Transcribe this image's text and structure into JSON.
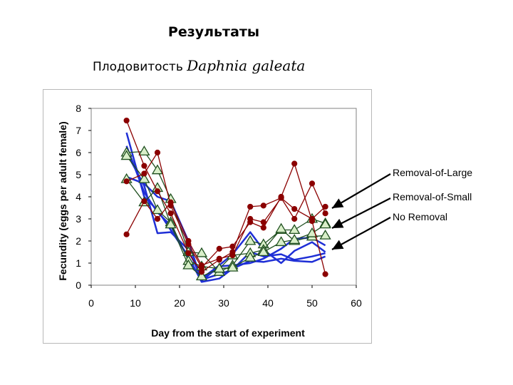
{
  "slide": {
    "title": "Результаты",
    "subtitle_prefix": "Плодовитость ",
    "subtitle_species": "Daphnia galeata"
  },
  "annotations": [
    "Removal-of-Large",
    "Removal-of-Small",
    "No Removal"
  ],
  "colors": {
    "removal_of_large": "#8b0000",
    "removal_of_small": "#1f4f1f",
    "no_removal": "#1f2fd6",
    "arrow": "#000000"
  },
  "chart_data": {
    "type": "line",
    "title": "",
    "xlabel": "Day from the start of experiment",
    "ylabel": "Fecundity (eggs per adult female)",
    "xlim": [
      0,
      60
    ],
    "ylim": [
      0,
      8
    ],
    "xticks": [
      0,
      10,
      20,
      30,
      40,
      50,
      60
    ],
    "yticks": [
      0,
      1,
      2,
      3,
      4,
      5,
      6,
      7,
      8
    ],
    "grid": false,
    "series": [
      {
        "group": "Removal-of-Large",
        "marker": "circle",
        "x": [
          8,
          12,
          15,
          18,
          22,
          25,
          29,
          32,
          36,
          39,
          43,
          46,
          50,
          53
        ],
        "y": [
          7.45,
          5.4,
          4.25,
          3.25,
          1.45,
          0.6,
          1.15,
          1.5,
          3.55,
          3.6,
          3.95,
          3.45,
          3.0,
          3.55
        ]
      },
      {
        "group": "Removal-of-Large",
        "marker": "circle",
        "x": [
          8,
          12,
          15,
          18,
          22,
          25,
          29,
          32,
          36,
          39,
          43,
          46,
          50,
          53
        ],
        "y": [
          4.7,
          5.05,
          6.0,
          3.6,
          1.85,
          0.8,
          1.65,
          1.75,
          2.85,
          2.6,
          4.0,
          5.5,
          2.9,
          0.5
        ]
      },
      {
        "group": "Removal-of-Large",
        "marker": "circle",
        "x": [
          8,
          12,
          15,
          18,
          22,
          25,
          29,
          32,
          36,
          39,
          43,
          46,
          50,
          53
        ],
        "y": [
          2.3,
          3.8,
          3.0,
          3.75,
          2.0,
          0.9,
          1.2,
          1.35,
          3.0,
          2.85,
          3.95,
          3.0,
          4.6,
          3.25
        ]
      },
      {
        "group": "Removal-of-Small",
        "marker": "triangle",
        "x": [
          8,
          12,
          15,
          18,
          22,
          25,
          29,
          32,
          36,
          39,
          43,
          46,
          50,
          53
        ],
        "y": [
          6.0,
          6.05,
          5.2,
          3.9,
          1.5,
          1.45,
          0.6,
          0.9,
          2.0,
          1.85,
          2.5,
          2.5,
          3.0,
          2.8
        ]
      },
      {
        "group": "Removal-of-Small",
        "marker": "triangle",
        "x": [
          8,
          12,
          15,
          18,
          22,
          25,
          29,
          32,
          36,
          39,
          43,
          46,
          50,
          53
        ],
        "y": [
          5.85,
          4.8,
          3.4,
          2.85,
          1.1,
          0.85,
          0.75,
          1.35,
          1.45,
          1.6,
          2.55,
          2.0,
          2.2,
          2.25
        ]
      },
      {
        "group": "Removal-of-Small",
        "marker": "triangle",
        "x": [
          8,
          12,
          15,
          18,
          22,
          25,
          29,
          32,
          36,
          39,
          43,
          46,
          50,
          53
        ],
        "y": [
          4.8,
          3.75,
          4.4,
          2.75,
          0.9,
          0.4,
          0.75,
          0.8,
          1.25,
          1.5,
          1.95,
          2.05,
          2.35,
          2.75
        ]
      },
      {
        "group": "No Removal",
        "marker": "none",
        "x": [
          8,
          12,
          15,
          18,
          22,
          25,
          29,
          32,
          36,
          39,
          43,
          46,
          50,
          53
        ],
        "y": [
          6.9,
          4.0,
          3.4,
          2.5,
          1.3,
          0.15,
          0.3,
          0.75,
          1.1,
          1.05,
          1.2,
          1.1,
          1.05,
          1.3
        ]
      },
      {
        "group": "No Removal",
        "marker": "none",
        "x": [
          8,
          12,
          15,
          18,
          22,
          25,
          29,
          32,
          36,
          39,
          43,
          46,
          50,
          53
        ],
        "y": [
          6.0,
          4.5,
          2.35,
          2.4,
          1.6,
          0.3,
          0.9,
          1.4,
          2.4,
          1.6,
          1.0,
          1.55,
          1.95,
          1.5
        ]
      },
      {
        "group": "No Removal",
        "marker": "none",
        "x": [
          8,
          12,
          15,
          18,
          22,
          25,
          29,
          32,
          36,
          39,
          43,
          46,
          50,
          53
        ],
        "y": [
          4.9,
          4.6,
          4.0,
          3.8,
          2.0,
          0.2,
          0.85,
          0.9,
          1.0,
          1.2,
          1.65,
          2.1,
          2.15,
          1.8
        ]
      },
      {
        "group": "No Removal",
        "marker": "none",
        "x": [
          8,
          12,
          15,
          18,
          22,
          25,
          29,
          32,
          36,
          39,
          43,
          46,
          50,
          53
        ],
        "y": [
          6.3,
          4.2,
          3.3,
          2.7,
          1.2,
          0.25,
          0.5,
          0.7,
          1.5,
          1.3,
          1.4,
          1.15,
          1.3,
          1.45
        ]
      }
    ]
  }
}
